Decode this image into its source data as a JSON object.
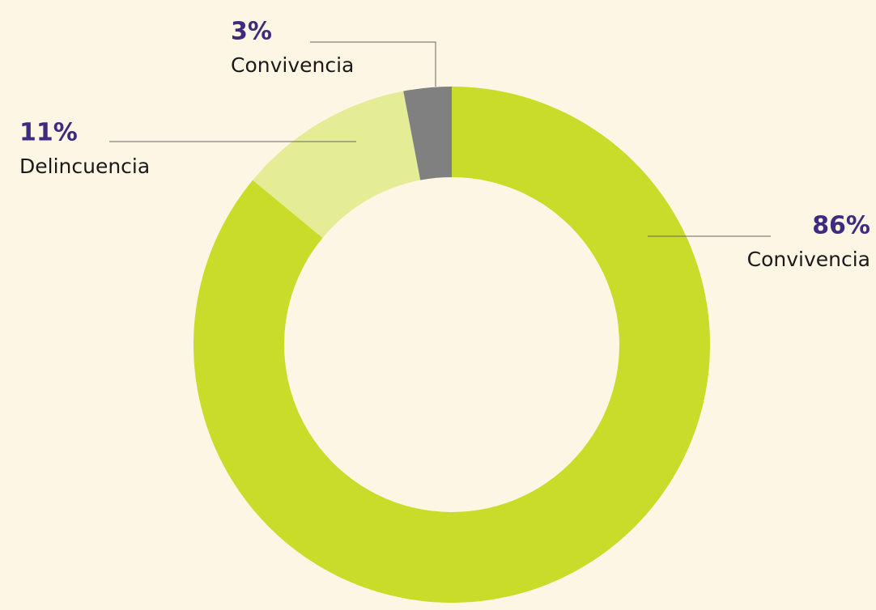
{
  "chart_data": {
    "type": "donut",
    "categories": [
      "Convivencia",
      "Delincuencia",
      "Convivencia"
    ],
    "values": [
      86,
      11,
      3
    ],
    "value_labels": [
      "86%",
      "11%",
      "3%"
    ],
    "colors": [
      "#c9dc2a",
      "#e4ed96",
      "#808080"
    ]
  }
}
